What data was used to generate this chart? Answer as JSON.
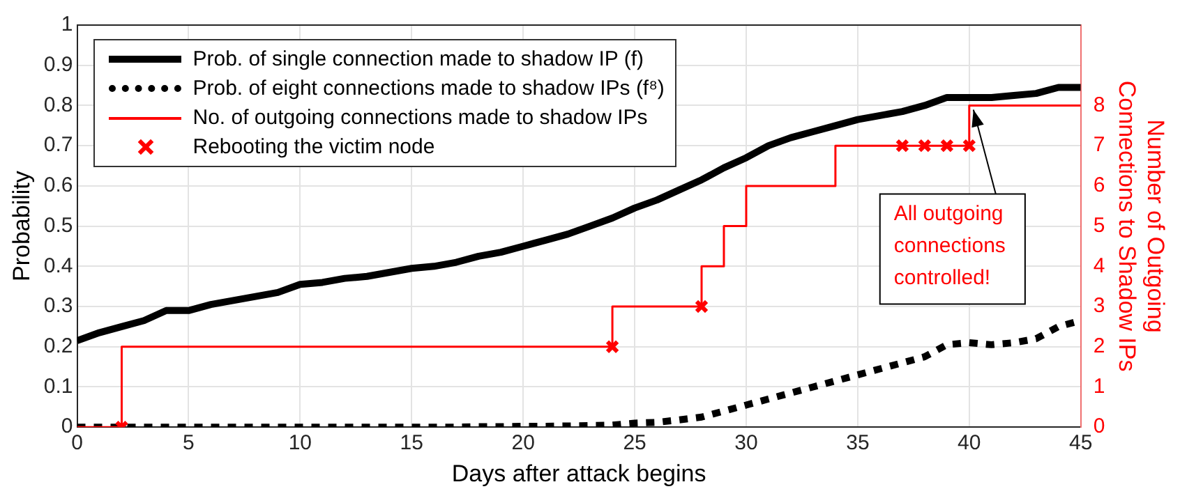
{
  "chart_data": {
    "type": "line",
    "xlabel": "Days after attack begins",
    "ylabel": "Probability",
    "y2label": "Number of Outgoing\nConnections to Shadow IPs",
    "xlim": [
      0,
      45
    ],
    "xticks": [
      0,
      5,
      10,
      15,
      20,
      25,
      30,
      35,
      40,
      45
    ],
    "ylim": [
      0,
      1
    ],
    "yticks": [
      0,
      0.1,
      0.2,
      0.3,
      0.4,
      0.5,
      0.6,
      0.7,
      0.8,
      0.9,
      1
    ],
    "y2lim": [
      0,
      10
    ],
    "y2ticks": [
      0,
      1,
      2,
      3,
      4,
      5,
      6,
      7,
      8
    ],
    "grid": true,
    "legend": "top left",
    "x": [
      0,
      1,
      2,
      3,
      4,
      5,
      6,
      7,
      8,
      9,
      10,
      11,
      12,
      13,
      14,
      15,
      16,
      17,
      18,
      19,
      20,
      21,
      22,
      23,
      24,
      25,
      26,
      27,
      28,
      29,
      30,
      31,
      32,
      33,
      34,
      35,
      36,
      37,
      38,
      39,
      40,
      41,
      42,
      43,
      44,
      45
    ],
    "series": [
      {
        "name": "Prob. of single connection made to shadow IP (f)",
        "type": "line",
        "color": "#000000",
        "line_style": "solid",
        "values": [
          0.215,
          0.235,
          0.25,
          0.265,
          0.29,
          0.29,
          0.305,
          0.315,
          0.325,
          0.335,
          0.355,
          0.36,
          0.37,
          0.375,
          0.385,
          0.395,
          0.4,
          0.41,
          0.425,
          0.435,
          0.45,
          0.465,
          0.48,
          0.5,
          0.52,
          0.545,
          0.565,
          0.59,
          0.615,
          0.645,
          0.67,
          0.7,
          0.72,
          0.735,
          0.75,
          0.765,
          0.775,
          0.785,
          0.8,
          0.82,
          0.82,
          0.82,
          0.825,
          0.83,
          0.845,
          0.845
        ]
      },
      {
        "name": "Prob. of eight connections made to shadow IPs (f⁸)",
        "type": "line",
        "color": "#000000",
        "line_style": "dotted",
        "values": [
          0,
          0,
          0,
          0,
          0,
          0,
          0,
          0,
          0,
          0,
          0,
          0,
          0,
          0,
          0,
          0,
          0,
          0,
          0.001,
          0.001,
          0.002,
          0.002,
          0.003,
          0.004,
          0.005,
          0.01,
          0.012,
          0.018,
          0.025,
          0.04,
          0.055,
          0.07,
          0.085,
          0.1,
          0.115,
          0.13,
          0.145,
          0.16,
          0.175,
          0.205,
          0.21,
          0.205,
          0.21,
          0.22,
          0.25,
          0.265
        ]
      },
      {
        "name": "No. of outgoing connections made to shadow IPs",
        "type": "step",
        "axis": "y2",
        "color": "#ff0000",
        "line_style": "solid",
        "x": [
          0,
          2,
          24,
          28,
          29,
          30,
          34,
          40,
          45
        ],
        "values": [
          0,
          2,
          3,
          4,
          5,
          6,
          7,
          8,
          8
        ]
      },
      {
        "name": "Rebooting the victim node",
        "type": "scatter",
        "axis": "y2",
        "color": "#ff0000",
        "marker": "cross",
        "x": [
          2,
          24,
          28,
          37,
          38,
          39,
          40
        ],
        "values": [
          0,
          2,
          3,
          7,
          7,
          7,
          7
        ]
      }
    ],
    "annotations": [
      {
        "text": "All outgoing\nconnections\ncontrolled!",
        "x": 40,
        "y": 0.8
      }
    ]
  }
}
